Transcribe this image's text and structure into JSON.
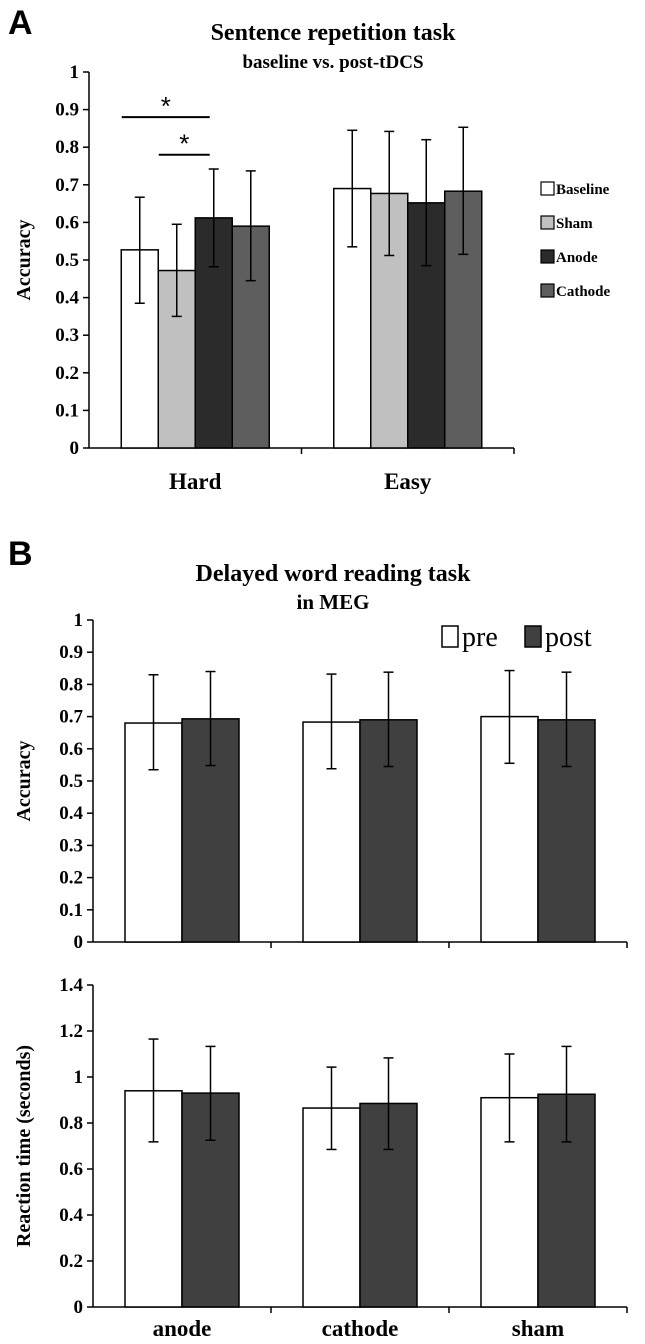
{
  "panels": {
    "a": "A",
    "b": "B"
  },
  "colors": {
    "baseline": "#ffffff",
    "sham": "#c0c0c0",
    "anode": "#2b2b2b",
    "cathode": "#5e5e5e",
    "pre": "#ffffff",
    "post": "#404040"
  },
  "chart_data": [
    {
      "type": "bar",
      "title": "Sentence repetition task",
      "subtitle": "baseline vs. post-tDCS",
      "xlabel": "",
      "ylabel": "Accuracy",
      "ylim": [
        0,
        1
      ],
      "yticks": [
        "0",
        "0.1",
        "0.2",
        "0.3",
        "0.4",
        "0.5",
        "0.6",
        "0.7",
        "0.8",
        "0.9",
        "1"
      ],
      "categories": [
        "Hard",
        "Easy"
      ],
      "series": [
        {
          "name": "Baseline",
          "values": [
            0.527,
            0.69
          ],
          "err_low": [
            0.385,
            0.535
          ],
          "err_high": [
            0.667,
            0.845
          ]
        },
        {
          "name": "Sham",
          "values": [
            0.472,
            0.677
          ],
          "err_low": [
            0.35,
            0.512
          ],
          "err_high": [
            0.595,
            0.842
          ]
        },
        {
          "name": "Anode",
          "values": [
            0.612,
            0.652
          ],
          "err_low": [
            0.482,
            0.485
          ],
          "err_high": [
            0.742,
            0.82
          ]
        },
        {
          "name": "Cathode",
          "values": [
            0.59,
            0.683
          ],
          "err_low": [
            0.445,
            0.515
          ],
          "err_high": [
            0.737,
            0.853
          ]
        }
      ],
      "legend": "right",
      "annotations": [
        {
          "text": "*",
          "between": [
            "Baseline",
            "Anode"
          ],
          "category": "Hard",
          "y": 0.88
        },
        {
          "text": "*",
          "between": [
            "Sham",
            "Anode"
          ],
          "category": "Hard",
          "y": 0.78
        }
      ]
    },
    {
      "type": "bar",
      "title": "Delayed word reading task",
      "subtitle": "in MEG",
      "xlabel": "",
      "ylabel": "Accuracy",
      "ylim": [
        0,
        1
      ],
      "yticks": [
        "0",
        "0.1",
        "0.2",
        "0.3",
        "0.4",
        "0.5",
        "0.6",
        "0.7",
        "0.8",
        "0.9",
        "1"
      ],
      "categories": [
        "anode",
        "cathode",
        "sham"
      ],
      "series": [
        {
          "name": "pre",
          "values": [
            0.68,
            0.683,
            0.7
          ],
          "err_low": [
            0.535,
            0.538,
            0.555
          ],
          "err_high": [
            0.83,
            0.832,
            0.843
          ]
        },
        {
          "name": "post",
          "values": [
            0.693,
            0.69,
            0.69
          ],
          "err_low": [
            0.548,
            0.545,
            0.545
          ],
          "err_high": [
            0.84,
            0.838,
            0.838
          ]
        }
      ],
      "legend": "top-right"
    },
    {
      "type": "bar",
      "title": "",
      "xlabel": "",
      "ylabel": "Reaction time (seconds)",
      "ylim": [
        0,
        1.4
      ],
      "yticks": [
        "0",
        "0.2",
        "0.4",
        "0.6",
        "0.8",
        "1",
        "1.2",
        "1.4"
      ],
      "categories": [
        "anode",
        "cathode",
        "sham"
      ],
      "series": [
        {
          "name": "pre",
          "values": [
            0.94,
            0.865,
            0.91
          ],
          "err_low": [
            0.718,
            0.685,
            0.718
          ],
          "err_high": [
            1.165,
            1.043,
            1.1
          ]
        },
        {
          "name": "post",
          "values": [
            0.93,
            0.885,
            0.925
          ],
          "err_low": [
            0.725,
            0.685,
            0.718
          ],
          "err_high": [
            1.133,
            1.083,
            1.133
          ]
        }
      ]
    }
  ]
}
